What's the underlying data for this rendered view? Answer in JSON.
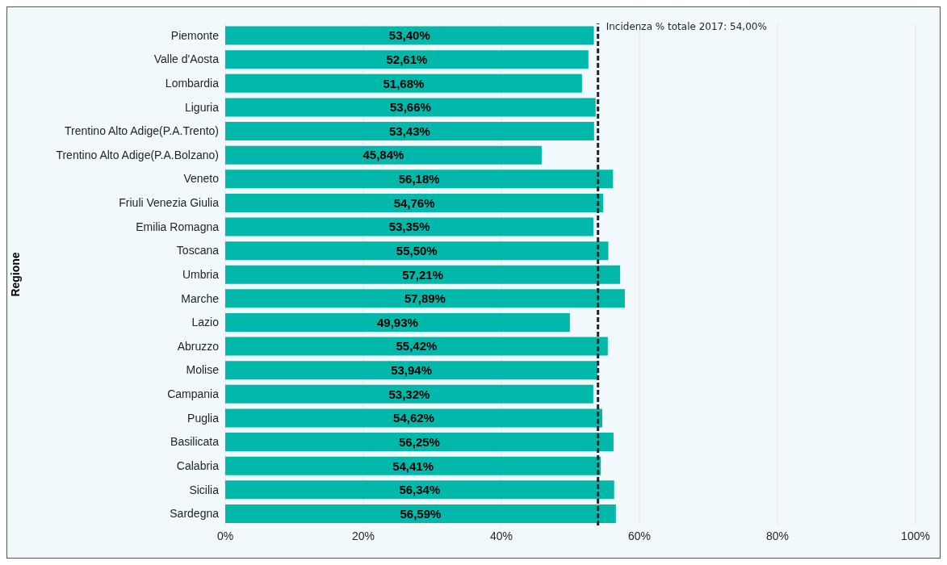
{
  "chart_data": {
    "type": "bar",
    "orientation": "horizontal",
    "ylabel": "Regione",
    "categories": [
      "Piemonte",
      "Valle d'Aosta",
      "Lombardia",
      "Liguria",
      "Trentino Alto Adige(P.A.Trento)",
      "Trentino Alto Adige(P.A.Bolzano)",
      "Veneto",
      "Friuli Venezia Giulia",
      "Emilia Romagna",
      "Toscana",
      "Umbria",
      "Marche",
      "Lazio",
      "Abruzzo",
      "Molise",
      "Campania",
      "Puglia",
      "Basilicata",
      "Calabria",
      "Sicilia",
      "Sardegna"
    ],
    "values": [
      53.4,
      52.61,
      51.68,
      53.66,
      53.43,
      45.84,
      56.18,
      54.76,
      53.35,
      55.5,
      57.21,
      57.89,
      49.93,
      55.42,
      53.94,
      53.32,
      54.62,
      56.25,
      54.41,
      56.34,
      56.59
    ],
    "value_labels": [
      "53,40%",
      "52,61%",
      "51,68%",
      "53,66%",
      "53,43%",
      "45,84%",
      "56,18%",
      "54,76%",
      "53,35%",
      "55,50%",
      "57,21%",
      "57,89%",
      "49,93%",
      "55,42%",
      "53,94%",
      "53,32%",
      "54,62%",
      "56,25%",
      "54,41%",
      "56,34%",
      "56,59%"
    ],
    "color": "#01b8aa",
    "xlim": [
      0,
      100
    ],
    "xticks": [
      {
        "value": 0,
        "label": "0%"
      },
      {
        "value": 20,
        "label": "20%"
      },
      {
        "value": 40,
        "label": "40%"
      },
      {
        "value": 60,
        "label": "60%"
      },
      {
        "value": 80,
        "label": "80%"
      },
      {
        "value": 100,
        "label": "100%"
      }
    ],
    "grid": "x",
    "ref_lines": [
      {
        "axis": "x",
        "value": 54.0,
        "label": "Incidenza % totale 2017: 54,00%",
        "color": "#252423",
        "line_style": "dashed"
      }
    ]
  }
}
